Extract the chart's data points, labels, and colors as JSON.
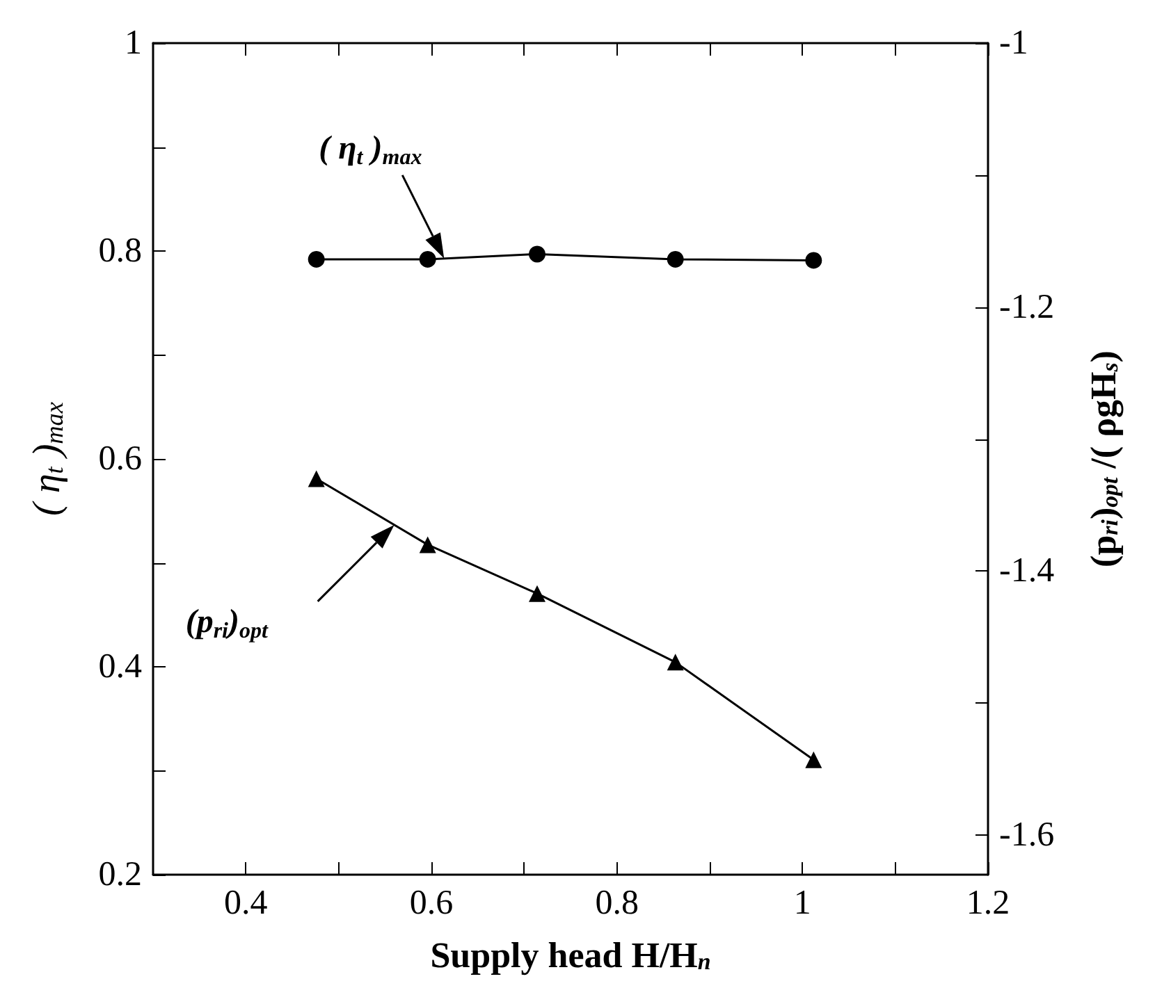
{
  "chart_data": {
    "type": "line",
    "xlabel": "Supply head H/H$_{n}$",
    "ylabel": "( η$_{t}$ )$_{max}$",
    "y2label": "(p$_{ri}$)$_{opt}$ /( ρgH$_{s}$)",
    "x": [
      0.476,
      0.596,
      0.714,
      0.863,
      1.012
    ],
    "series": [
      {
        "color": "#000000",
        "marker": "circle",
        "values": [
          0.792,
          0.792,
          0.797,
          0.792,
          0.791
        ]
      },
      {
        "color": "#000000",
        "marker": "triangle",
        "axis": "y2",
        "values": [
          -1.33,
          -1.38,
          -1.417,
          -1.469,
          -1.543
        ]
      }
    ],
    "xlim": [
      0.3,
      1.2
    ],
    "xticks": [
      0.4,
      {
        "value": 0.5,
        "label": null
      },
      0.6,
      {
        "value": 0.7,
        "label": null
      },
      0.8,
      {
        "value": 0.9,
        "label": null
      },
      1,
      {
        "value": 1.1,
        "label": null
      },
      1.2
    ],
    "ylim": [
      0.2,
      1
    ],
    "yticks": [
      0.2,
      {
        "value": 0.3,
        "label": null
      },
      0.4,
      {
        "value": 0.5,
        "label": null
      },
      0.6,
      {
        "value": 0.7,
        "label": null
      },
      0.8,
      {
        "value": 0.9,
        "label": null
      },
      1
    ],
    "y2lim": [
      -1.63,
      -1
    ],
    "y2ticks": [
      -1.6,
      {
        "value": -1.5,
        "label": null
      },
      -1.4,
      {
        "value": -1.3,
        "label": null
      },
      -1.2,
      {
        "value": -1.1,
        "label": null
      },
      -1
    ],
    "annotations": [
      "( η$_{t}$ )$_{max}$",
      "(p$_{ri}$)$_{opt}$"
    ]
  }
}
